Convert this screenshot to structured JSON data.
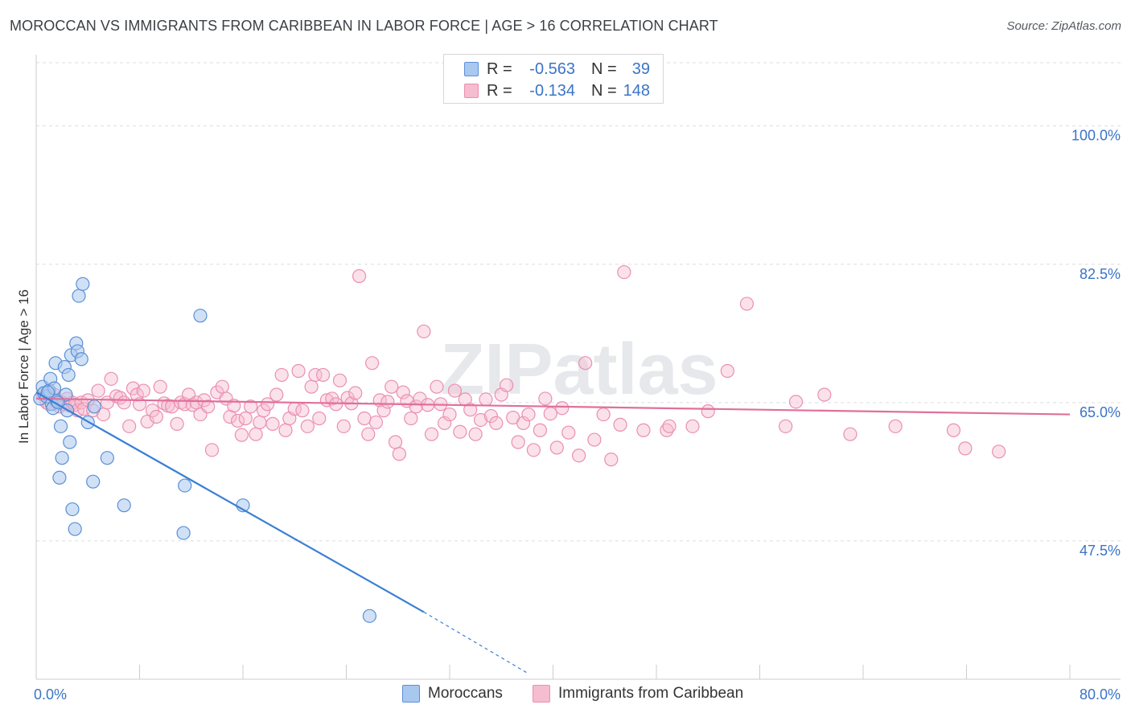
{
  "title": "MOROCCAN VS IMMIGRANTS FROM CARIBBEAN IN LABOR FORCE | AGE > 16 CORRELATION CHART",
  "source": "Source: ZipAtlas.com",
  "watermark": "ZIPatlas",
  "legend": {
    "moroccans": {
      "r_label": "R =",
      "r_value": "-0.563",
      "n_label": "N =",
      "n_value": "39"
    },
    "caribbean": {
      "r_label": "R =",
      "r_value": "-0.134",
      "n_label": "N =",
      "n_value": "148"
    }
  },
  "bottom_legend": {
    "moroccans": "Moroccans",
    "caribbean": "Immigrants from Caribbean"
  },
  "colors": {
    "blue_fill": "#a9c8ef",
    "blue_stroke": "#5b8fd6",
    "blue_line": "#3a7fd5",
    "pink_fill": "#f6bcd0",
    "pink_stroke": "#ea8fb0",
    "pink_line": "#e06f9a",
    "axis_text": "#3a74c7",
    "grid": "#dedede"
  },
  "chart_data": {
    "type": "scatter",
    "title": "MOROCCAN VS IMMIGRANTS FROM CARIBBEAN IN LABOR FORCE | AGE > 16 CORRELATION CHART",
    "xlabel": "",
    "ylabel": "In Labor Force | Age > 16",
    "xlim": [
      0,
      80
    ],
    "ylim": [
      30,
      108
    ],
    "x_tick_labels": [
      "0.0%",
      "80.0%"
    ],
    "y_ticks": [
      47.5,
      65.0,
      82.5,
      100.0
    ],
    "y_tick_labels": [
      "47.5%",
      "65.0%",
      "82.5%",
      "100.0%"
    ],
    "grid": true,
    "series": [
      {
        "name": "Moroccans",
        "points": [
          [
            0.3,
            65.5
          ],
          [
            0.5,
            67.0
          ],
          [
            0.6,
            66.2
          ],
          [
            0.8,
            65.8
          ],
          [
            1.0,
            66.5
          ],
          [
            1.1,
            68.0
          ],
          [
            1.2,
            64.8
          ],
          [
            1.3,
            64.3
          ],
          [
            1.4,
            66.8
          ],
          [
            1.5,
            70.0
          ],
          [
            1.6,
            65.2
          ],
          [
            1.8,
            55.5
          ],
          [
            1.9,
            62.0
          ],
          [
            2.0,
            58.0
          ],
          [
            2.2,
            69.5
          ],
          [
            2.3,
            66.0
          ],
          [
            2.5,
            68.5
          ],
          [
            2.6,
            60.0
          ],
          [
            2.7,
            71.0
          ],
          [
            2.8,
            51.5
          ],
          [
            3.0,
            49.0
          ],
          [
            3.1,
            72.5
          ],
          [
            3.2,
            71.5
          ],
          [
            3.3,
            78.5
          ],
          [
            3.5,
            70.5
          ],
          [
            3.6,
            80.0
          ],
          [
            4.0,
            62.5
          ],
          [
            4.4,
            55.0
          ],
          [
            4.5,
            64.5
          ],
          [
            5.5,
            58.0
          ],
          [
            6.8,
            52.0
          ],
          [
            11.4,
            48.5
          ],
          [
            11.5,
            54.5
          ],
          [
            12.7,
            76.0
          ],
          [
            16.0,
            52.0
          ],
          [
            25.8,
            38.0
          ],
          [
            0.9,
            66.3
          ],
          [
            1.7,
            65.0
          ],
          [
            2.4,
            64.0
          ]
        ],
        "trend": {
          "x": [
            0.0,
            30.0
          ],
          "y": [
            66.3,
            38.5
          ],
          "dashed_to": [
            38.0,
            30.8
          ]
        }
      },
      {
        "name": "Immigrants from Caribbean",
        "points": [
          [
            0.5,
            66.0
          ],
          [
            0.8,
            65.0
          ],
          [
            1.0,
            64.8
          ],
          [
            1.2,
            65.5
          ],
          [
            1.4,
            66.0
          ],
          [
            1.6,
            65.2
          ],
          [
            1.8,
            64.5
          ],
          [
            2.0,
            65.0
          ],
          [
            2.2,
            64.8
          ],
          [
            2.4,
            65.5
          ],
          [
            2.6,
            64.6
          ],
          [
            2.8,
            65.0
          ],
          [
            3.0,
            64.7
          ],
          [
            3.2,
            64.0
          ],
          [
            3.5,
            65.0
          ],
          [
            3.7,
            64.2
          ],
          [
            4.0,
            65.3
          ],
          [
            4.4,
            64.0
          ],
          [
            4.8,
            66.5
          ],
          [
            5.2,
            63.5
          ],
          [
            5.5,
            65.0
          ],
          [
            5.8,
            68.0
          ],
          [
            6.2,
            65.8
          ],
          [
            6.5,
            65.6
          ],
          [
            6.8,
            65.0
          ],
          [
            7.2,
            62.0
          ],
          [
            7.5,
            66.8
          ],
          [
            7.8,
            66.0
          ],
          [
            8.0,
            64.8
          ],
          [
            8.3,
            66.5
          ],
          [
            8.6,
            62.6
          ],
          [
            9.0,
            64.0
          ],
          [
            9.3,
            63.2
          ],
          [
            9.6,
            67.0
          ],
          [
            9.9,
            64.9
          ],
          [
            10.2,
            64.6
          ],
          [
            10.5,
            64.5
          ],
          [
            10.9,
            62.3
          ],
          [
            11.2,
            65.0
          ],
          [
            11.5,
            64.8
          ],
          [
            11.8,
            66.0
          ],
          [
            12.1,
            64.7
          ],
          [
            12.4,
            65.0
          ],
          [
            12.7,
            63.5
          ],
          [
            13.0,
            65.3
          ],
          [
            13.3,
            64.5
          ],
          [
            13.6,
            59.0
          ],
          [
            14.0,
            66.3
          ],
          [
            14.4,
            67.0
          ],
          [
            14.7,
            65.5
          ],
          [
            15.0,
            63.2
          ],
          [
            15.3,
            64.6
          ],
          [
            15.6,
            62.7
          ],
          [
            15.9,
            60.9
          ],
          [
            16.2,
            63.0
          ],
          [
            16.6,
            64.5
          ],
          [
            17.0,
            61.0
          ],
          [
            17.3,
            62.5
          ],
          [
            17.6,
            64.0
          ],
          [
            17.9,
            64.8
          ],
          [
            18.3,
            62.3
          ],
          [
            18.6,
            66.0
          ],
          [
            19.0,
            68.5
          ],
          [
            19.3,
            61.5
          ],
          [
            19.6,
            63.0
          ],
          [
            20.0,
            64.2
          ],
          [
            20.3,
            69.0
          ],
          [
            20.6,
            64.0
          ],
          [
            21.0,
            62.0
          ],
          [
            21.3,
            67.0
          ],
          [
            21.6,
            68.5
          ],
          [
            21.9,
            63.0
          ],
          [
            22.2,
            68.5
          ],
          [
            22.5,
            65.3
          ],
          [
            22.9,
            65.5
          ],
          [
            23.2,
            64.8
          ],
          [
            23.5,
            67.8
          ],
          [
            23.8,
            62.0
          ],
          [
            24.1,
            65.6
          ],
          [
            24.4,
            64.9
          ],
          [
            24.7,
            66.2
          ],
          [
            25.0,
            81.0
          ],
          [
            25.4,
            63.0
          ],
          [
            25.7,
            61.0
          ],
          [
            26.0,
            70.0
          ],
          [
            26.3,
            62.5
          ],
          [
            26.6,
            65.3
          ],
          [
            26.9,
            64.0
          ],
          [
            27.2,
            65.1
          ],
          [
            27.5,
            67.0
          ],
          [
            27.8,
            60.0
          ],
          [
            28.1,
            58.5
          ],
          [
            28.4,
            66.3
          ],
          [
            28.7,
            65.2
          ],
          [
            29.0,
            63.0
          ],
          [
            29.4,
            64.5
          ],
          [
            29.7,
            65.5
          ],
          [
            30.0,
            74.0
          ],
          [
            30.3,
            64.7
          ],
          [
            30.6,
            61.0
          ],
          [
            31.0,
            67.0
          ],
          [
            31.3,
            64.8
          ],
          [
            31.6,
            62.4
          ],
          [
            32.0,
            63.5
          ],
          [
            32.4,
            66.5
          ],
          [
            32.8,
            61.3
          ],
          [
            33.2,
            65.4
          ],
          [
            33.6,
            64.1
          ],
          [
            34.0,
            61.0
          ],
          [
            34.4,
            62.8
          ],
          [
            34.8,
            65.4
          ],
          [
            35.2,
            63.3
          ],
          [
            35.6,
            62.4
          ],
          [
            36.0,
            66.0
          ],
          [
            36.4,
            67.2
          ],
          [
            36.9,
            63.1
          ],
          [
            37.3,
            60.0
          ],
          [
            37.7,
            62.4
          ],
          [
            38.1,
            63.5
          ],
          [
            38.5,
            59.0
          ],
          [
            39.0,
            61.5
          ],
          [
            39.4,
            65.5
          ],
          [
            39.8,
            63.6
          ],
          [
            40.3,
            59.3
          ],
          [
            40.7,
            64.3
          ],
          [
            41.2,
            61.2
          ],
          [
            42.0,
            58.3
          ],
          [
            42.5,
            70.0
          ],
          [
            43.2,
            60.3
          ],
          [
            43.9,
            63.5
          ],
          [
            44.5,
            57.8
          ],
          [
            45.2,
            62.2
          ],
          [
            45.5,
            81.5
          ],
          [
            47.0,
            61.5
          ],
          [
            48.8,
            61.5
          ],
          [
            49.0,
            62.0
          ],
          [
            50.8,
            62.0
          ],
          [
            52.0,
            63.9
          ],
          [
            53.5,
            69.0
          ],
          [
            55.0,
            77.5
          ],
          [
            58.0,
            62.0
          ],
          [
            58.8,
            65.1
          ],
          [
            61.0,
            66.0
          ],
          [
            63.0,
            61.0
          ],
          [
            66.5,
            62.0
          ],
          [
            71.0,
            61.5
          ],
          [
            71.9,
            59.2
          ],
          [
            74.5,
            58.8
          ]
        ],
        "trend": {
          "x": [
            0.0,
            80.0
          ],
          "y": [
            65.5,
            63.5
          ]
        }
      }
    ]
  }
}
